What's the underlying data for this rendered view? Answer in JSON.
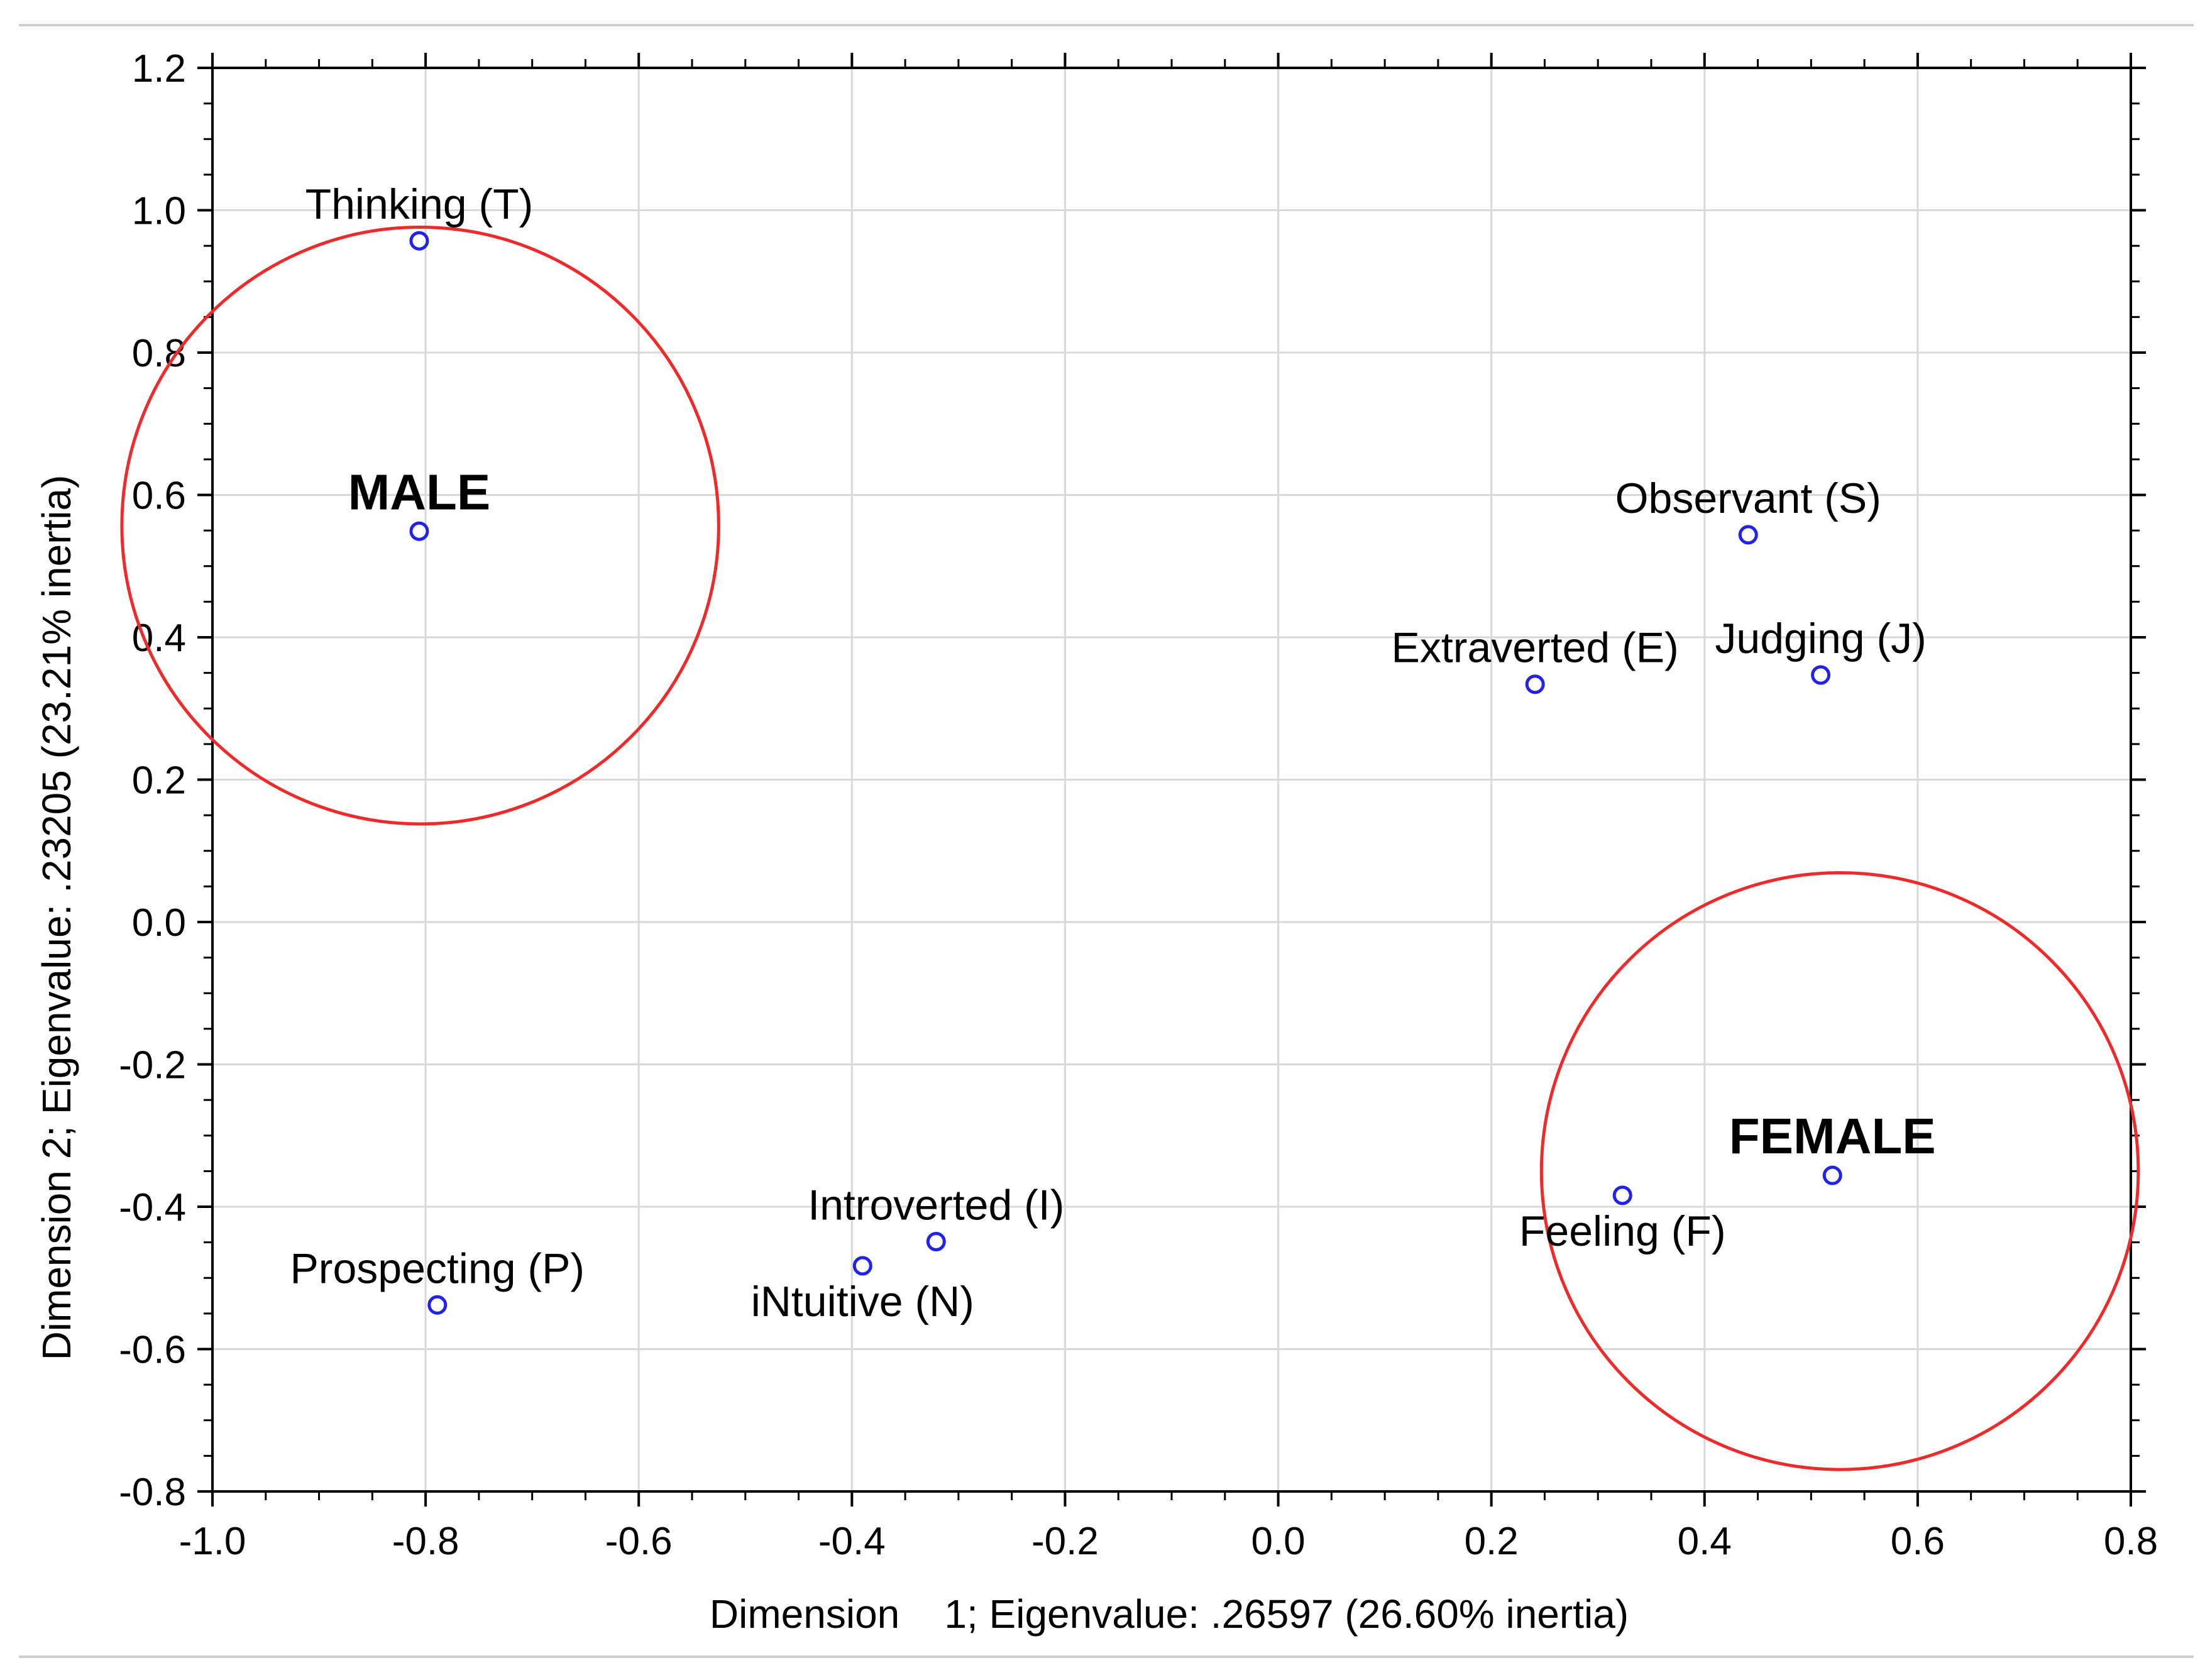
{
  "colors": {
    "background": "#ffffff",
    "frame": "#000000",
    "grid": "#d9d9d9",
    "point": "#2222ee",
    "circle": "#ee2a2a",
    "outer_border": "#cfcfcf",
    "text": "#000000"
  },
  "chart_data": {
    "type": "scatter",
    "title": "",
    "xlabel": "Dimension    1; Eigenvalue: .26597 (26.60% inertia)",
    "ylabel": "Dimension 2; Eigenvalue: .23205 (23.21% inertia)",
    "xlim": [
      -1.0,
      0.8
    ],
    "ylim": [
      -0.8,
      1.2
    ],
    "grid": true,
    "x_ticks": [
      {
        "value": -1.0,
        "label": "-1.0"
      },
      {
        "value": -0.8,
        "label": "-0.8"
      },
      {
        "value": -0.6,
        "label": "-0.6"
      },
      {
        "value": -0.4,
        "label": "-0.4"
      },
      {
        "value": -0.2,
        "label": "-0.2"
      },
      {
        "value": 0.0,
        "label": "0.0"
      },
      {
        "value": 0.2,
        "label": "0.2"
      },
      {
        "value": 0.4,
        "label": "0.4"
      },
      {
        "value": 0.6,
        "label": "0.6"
      },
      {
        "value": 0.8,
        "label": "0.8"
      }
    ],
    "y_ticks": [
      {
        "value": -0.8,
        "label": "-0.8"
      },
      {
        "value": -0.6,
        "label": "-0.6"
      },
      {
        "value": -0.4,
        "label": "-0.4"
      },
      {
        "value": -0.2,
        "label": "-0.2"
      },
      {
        "value": 0.0,
        "label": "0.0"
      },
      {
        "value": 0.2,
        "label": "0.2"
      },
      {
        "value": 0.4,
        "label": "0.4"
      },
      {
        "value": 0.6,
        "label": "0.6"
      },
      {
        "value": 0.8,
        "label": "0.8"
      },
      {
        "value": 1.0,
        "label": "1.0"
      },
      {
        "value": 1.2,
        "label": "1.2"
      }
    ],
    "points": [
      {
        "id": "thinking",
        "label": "Thinking (T)",
        "x": -0.806,
        "y": 0.957,
        "label_position": "above",
        "bold": false
      },
      {
        "id": "male",
        "label": "MALE",
        "x": -0.806,
        "y": 0.549,
        "label_position": "above",
        "bold": true
      },
      {
        "id": "observant",
        "label": "Observant (S)",
        "x": 0.441,
        "y": 0.544,
        "label_position": "above",
        "bold": false
      },
      {
        "id": "judging",
        "label": "Judging (J)",
        "x": 0.509,
        "y": 0.347,
        "label_position": "above",
        "bold": false
      },
      {
        "id": "extraverted",
        "label": "Extraverted (E)",
        "x": 0.241,
        "y": 0.334,
        "label_position": "above",
        "bold": false
      },
      {
        "id": "introverted",
        "label": "Introverted (I)",
        "x": -0.321,
        "y": -0.449,
        "label_position": "above",
        "bold": false
      },
      {
        "id": "intuitive",
        "label": "iNtuitive (N)",
        "x": -0.39,
        "y": -0.483,
        "label_position": "below",
        "bold": false
      },
      {
        "id": "prospecting",
        "label": "Prospecting (P)",
        "x": -0.789,
        "y": -0.538,
        "label_position": "above",
        "bold": false
      },
      {
        "id": "feeling",
        "label": "Feeling (F)",
        "x": 0.323,
        "y": -0.384,
        "label_position": "below",
        "bold": false
      },
      {
        "id": "female",
        "label": "FEMALE",
        "x": 0.52,
        "y": -0.356,
        "label_position": "above",
        "bold": true
      }
    ],
    "highlight_circles": [
      {
        "id": "male-circle",
        "cx": -0.805,
        "cy": 0.557
      },
      {
        "id": "female-circle",
        "cx": 0.527,
        "cy": -0.35
      }
    ]
  }
}
